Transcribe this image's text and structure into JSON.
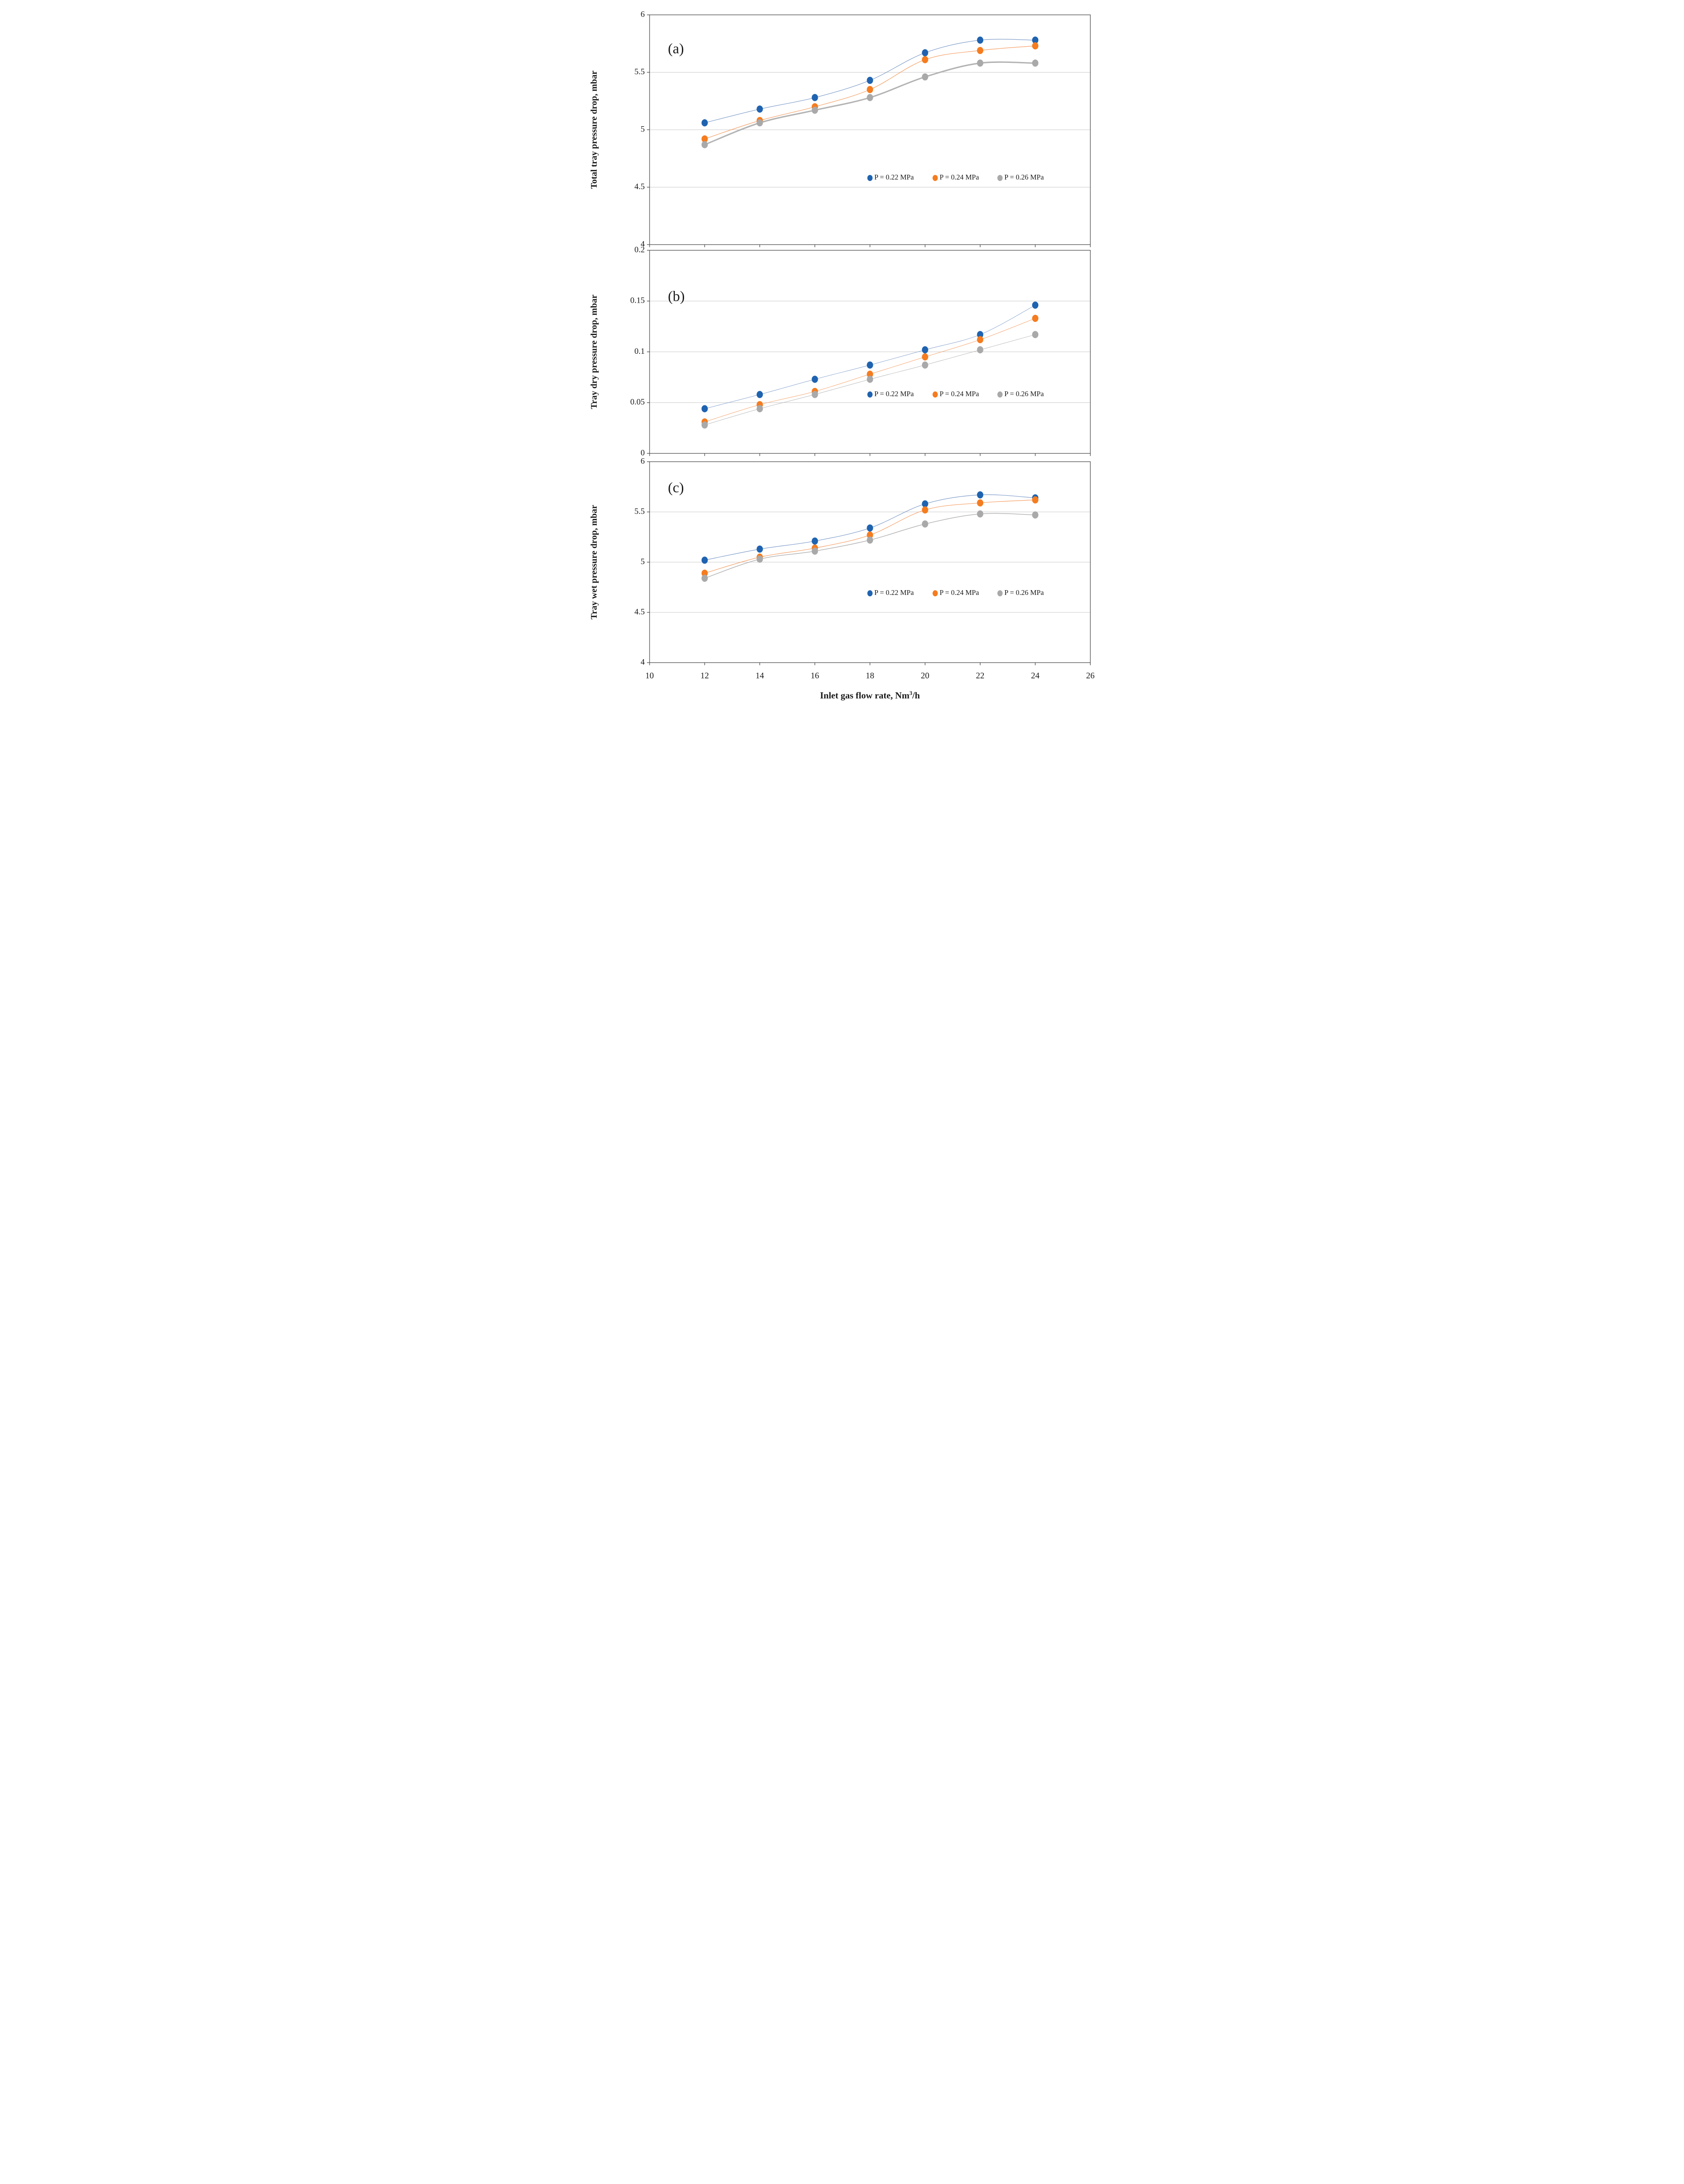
{
  "figure": {
    "x_axis": {
      "label_prefix": "Inlet gas flow rate, Nm",
      "label_sup": "3",
      "label_suffix": "/h",
      "min": 10,
      "max": 26,
      "step": 2,
      "tick_labels": [
        "10",
        "12",
        "14",
        "16",
        "18",
        "20",
        "22",
        "24",
        "26"
      ]
    },
    "legend": {
      "items": [
        {
          "label": "P = 0.22 MPa",
          "color": "#1f63b0"
        },
        {
          "label": "P = 0.24 MPa",
          "color": "#f57c1f"
        },
        {
          "label": "P = 0.26 MPa",
          "color": "#a9a9a9"
        }
      ],
      "position": "inside-right-lower"
    },
    "colors": {
      "gridline": "#c8c8c8",
      "axis": "#4a4a4a",
      "marker_blue": "#1f63b0",
      "marker_orange": "#f57c1f",
      "marker_gray": "#a9a9a9",
      "background": "#ffffff"
    }
  },
  "chart_data": [
    {
      "type": "line",
      "panel_label": "(a)",
      "xlabel": "Inlet gas flow rate, Nm3/h",
      "ylabel": "Total tray pressure drop, mbar",
      "ylim": [
        4,
        6
      ],
      "yticks": [
        4,
        4.5,
        5,
        5.5,
        6
      ],
      "ytick_labels": [
        "4",
        "4.5",
        "5",
        "5.5",
        "6"
      ],
      "grid": true,
      "legend_y_value": 4.58,
      "x": [
        12,
        14,
        16,
        18,
        20,
        22,
        24
      ],
      "series": [
        {
          "name": "P = 0.22 MPa",
          "color": "#1f63b0",
          "values": [
            5.06,
            5.18,
            5.28,
            5.43,
            5.67,
            5.78,
            5.78
          ]
        },
        {
          "name": "P = 0.24 MPa",
          "color": "#f57c1f",
          "values": [
            4.92,
            5.08,
            5.2,
            5.35,
            5.61,
            5.69,
            5.73
          ]
        },
        {
          "name": "P = 0.26 MPa",
          "color": "#a9a9a9",
          "values": [
            4.87,
            5.06,
            5.17,
            5.28,
            5.46,
            5.58,
            5.58
          ]
        }
      ]
    },
    {
      "type": "line",
      "panel_label": "(b)",
      "xlabel": "Inlet gas flow rate, Nm3/h",
      "ylabel": "Tray dry pressure drop, mbar",
      "ylim": [
        0,
        0.2
      ],
      "yticks": [
        0,
        0.05,
        0.1,
        0.15,
        0.2
      ],
      "ytick_labels": [
        "0",
        "0.05",
        "0.1",
        "0.15",
        "0.2"
      ],
      "grid": true,
      "legend_y_value": 0.058,
      "legend_background": true,
      "x": [
        12,
        14,
        16,
        18,
        20,
        22,
        24
      ],
      "series": [
        {
          "name": "P = 0.22 MPa",
          "color": "#1f63b0",
          "values": [
            0.044,
            0.058,
            0.073,
            0.087,
            0.102,
            0.117,
            0.146
          ]
        },
        {
          "name": "P = 0.24 MPa",
          "color": "#f57c1f",
          "values": [
            0.031,
            0.048,
            0.061,
            0.078,
            0.095,
            0.112,
            0.133
          ]
        },
        {
          "name": "P = 0.26 MPa",
          "color": "#a9a9a9",
          "values": [
            0.028,
            0.044,
            0.058,
            0.073,
            0.087,
            0.102,
            0.117
          ]
        }
      ]
    },
    {
      "type": "line",
      "panel_label": "(c)",
      "xlabel": "Inlet gas flow rate, Nm3/h",
      "ylabel": "Tray wet pressure drop, mbar",
      "ylim": [
        4,
        6
      ],
      "yticks": [
        4,
        4.5,
        5,
        5.5,
        6
      ],
      "ytick_labels": [
        "4",
        "4.5",
        "5",
        "5.5",
        "6"
      ],
      "grid": true,
      "legend_y_value": 4.69,
      "x": [
        12,
        14,
        16,
        18,
        20,
        22,
        24
      ],
      "series": [
        {
          "name": "P = 0.22 MPa",
          "color": "#1f63b0",
          "values": [
            5.02,
            5.13,
            5.21,
            5.34,
            5.58,
            5.67,
            5.64
          ]
        },
        {
          "name": "P = 0.24 MPa",
          "color": "#f57c1f",
          "values": [
            4.89,
            5.05,
            5.14,
            5.27,
            5.52,
            5.59,
            5.62
          ]
        },
        {
          "name": "P = 0.26 MPa",
          "color": "#a9a9a9",
          "values": [
            4.84,
            5.03,
            5.11,
            5.22,
            5.38,
            5.48,
            5.47
          ]
        }
      ]
    }
  ]
}
